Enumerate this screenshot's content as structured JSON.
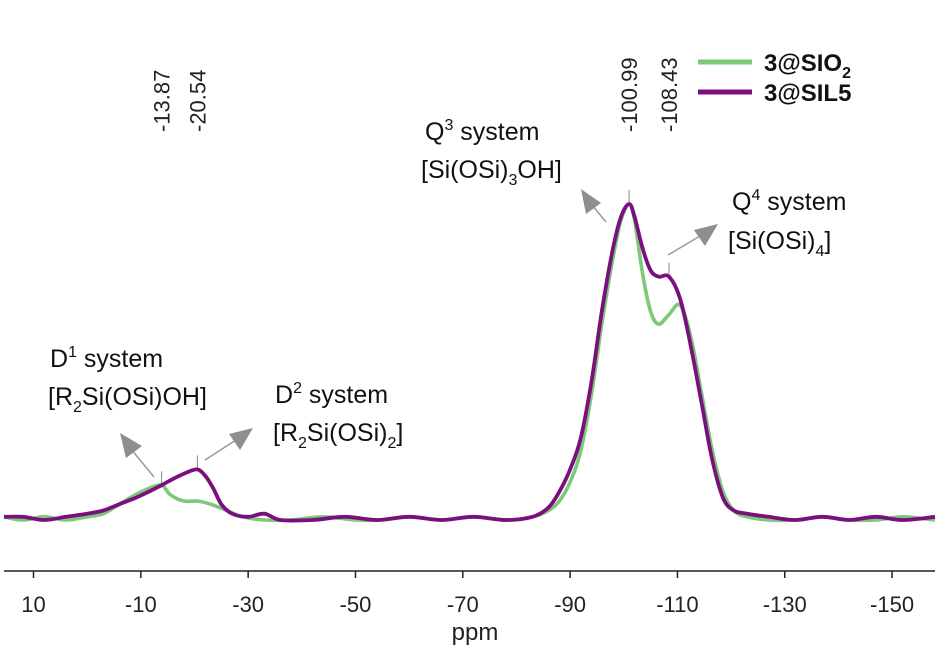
{
  "chart_data": {
    "type": "line",
    "xlabel": "ppm",
    "xlim": [
      15.5,
      -158
    ],
    "x_reversed": true,
    "xticks": [
      {
        "value": 10,
        "label": "10"
      },
      {
        "value": -10,
        "label": "-10"
      },
      {
        "value": -30,
        "label": "-30"
      },
      {
        "value": -50,
        "label": "-50"
      },
      {
        "value": -70,
        "label": "-70"
      },
      {
        "value": -90,
        "label": "-90"
      },
      {
        "value": -110,
        "label": "-110"
      },
      {
        "value": -130,
        "label": "-130"
      },
      {
        "value": -150,
        "label": "-150"
      }
    ],
    "ylim": [
      -0.03,
      1.08
    ],
    "yticks_shown": false,
    "grid": false,
    "legend_position": "top-right",
    "series": [
      {
        "name": "3@SIO2",
        "name_main": "3@SIO",
        "name_sub": "2",
        "color": "#7ec87a",
        "points": [
          [
            15.5,
            0.01
          ],
          [
            12,
            0.0
          ],
          [
            8,
            0.01
          ],
          [
            4,
            0.0
          ],
          [
            0,
            0.01
          ],
          [
            -3,
            0.02
          ],
          [
            -6,
            0.05
          ],
          [
            -9,
            0.08
          ],
          [
            -11.5,
            0.1
          ],
          [
            -13.87,
            0.11
          ],
          [
            -15.5,
            0.08
          ],
          [
            -18,
            0.06
          ],
          [
            -20.54,
            0.06
          ],
          [
            -23,
            0.05
          ],
          [
            -26,
            0.03
          ],
          [
            -29,
            0.01
          ],
          [
            -33,
            0.0
          ],
          [
            -38,
            0.0
          ],
          [
            -44,
            0.01
          ],
          [
            -50,
            0.0
          ],
          [
            -55,
            0.0
          ],
          [
            -60,
            0.01
          ],
          [
            -66,
            0.0
          ],
          [
            -72,
            0.01
          ],
          [
            -78,
            0.0
          ],
          [
            -83,
            0.01
          ],
          [
            -86,
            0.03
          ],
          [
            -88,
            0.06
          ],
          [
            -90,
            0.12
          ],
          [
            -92,
            0.22
          ],
          [
            -94,
            0.4
          ],
          [
            -96,
            0.63
          ],
          [
            -98,
            0.83
          ],
          [
            -99.5,
            0.95
          ],
          [
            -100.99,
            1.0
          ],
          [
            -102,
            0.95
          ],
          [
            -103.5,
            0.78
          ],
          [
            -105,
            0.66
          ],
          [
            -106.5,
            0.62
          ],
          [
            -108.43,
            0.65
          ],
          [
            -110.5,
            0.68
          ],
          [
            -112.5,
            0.58
          ],
          [
            -114.5,
            0.4
          ],
          [
            -116.5,
            0.22
          ],
          [
            -118.5,
            0.09
          ],
          [
            -120.5,
            0.03
          ],
          [
            -123,
            0.01
          ],
          [
            -127,
            0.0
          ],
          [
            -132,
            0.0
          ],
          [
            -137,
            0.01
          ],
          [
            -142,
            0.0
          ],
          [
            -147,
            0.0
          ],
          [
            -152,
            0.01
          ],
          [
            -158,
            0.0
          ]
        ]
      },
      {
        "name": "3@SIL5",
        "name_main": "3@SIL5",
        "name_sub": "",
        "color": "#7a0f7e",
        "points": [
          [
            15.5,
            0.01
          ],
          [
            12,
            0.01
          ],
          [
            8,
            0.0
          ],
          [
            4,
            0.01
          ],
          [
            0,
            0.02
          ],
          [
            -3,
            0.03
          ],
          [
            -6,
            0.05
          ],
          [
            -9,
            0.07
          ],
          [
            -11.5,
            0.09
          ],
          [
            -13.87,
            0.11
          ],
          [
            -16,
            0.13
          ],
          [
            -18.5,
            0.15
          ],
          [
            -20.54,
            0.16
          ],
          [
            -22,
            0.14
          ],
          [
            -23.5,
            0.1
          ],
          [
            -25,
            0.05
          ],
          [
            -27,
            0.02
          ],
          [
            -30,
            0.01
          ],
          [
            -33,
            0.02
          ],
          [
            -36,
            0.0
          ],
          [
            -42,
            0.0
          ],
          [
            -48,
            0.01
          ],
          [
            -54,
            0.0
          ],
          [
            -60,
            0.01
          ],
          [
            -66,
            0.0
          ],
          [
            -72,
            0.01
          ],
          [
            -78,
            0.0
          ],
          [
            -83,
            0.01
          ],
          [
            -86,
            0.04
          ],
          [
            -88,
            0.09
          ],
          [
            -90,
            0.16
          ],
          [
            -92,
            0.26
          ],
          [
            -94,
            0.44
          ],
          [
            -96,
            0.67
          ],
          [
            -98,
            0.86
          ],
          [
            -99.5,
            0.96
          ],
          [
            -100.99,
            1.0
          ],
          [
            -102,
            0.96
          ],
          [
            -103.5,
            0.86
          ],
          [
            -105,
            0.79
          ],
          [
            -106.5,
            0.77
          ],
          [
            -108.43,
            0.77
          ],
          [
            -110.5,
            0.7
          ],
          [
            -112.5,
            0.55
          ],
          [
            -114.5,
            0.37
          ],
          [
            -116.5,
            0.19
          ],
          [
            -118.5,
            0.07
          ],
          [
            -120.5,
            0.03
          ],
          [
            -123,
            0.02
          ],
          [
            -127,
            0.01
          ],
          [
            -132,
            0.0
          ],
          [
            -137,
            0.01
          ],
          [
            -142,
            0.0
          ],
          [
            -147,
            0.01
          ],
          [
            -152,
            0.0
          ],
          [
            -158,
            0.01
          ]
        ]
      }
    ],
    "peak_labels": [
      {
        "x": -13.87,
        "label": "-13.87"
      },
      {
        "x": -20.54,
        "label": "-20.54"
      },
      {
        "x": -100.99,
        "label": "-100.99"
      },
      {
        "x": -108.43,
        "label": "-108.43"
      }
    ],
    "annotations": [
      {
        "key": "D1",
        "line1_main": "D",
        "line1_sup": "1",
        "line1_rest": " system",
        "line2_parts": [
          "[R",
          "2",
          "Si(OSi)OH]"
        ]
      },
      {
        "key": "D2",
        "line1_main": "D",
        "line1_sup": "2",
        "line1_rest": " system",
        "line2_parts": [
          "[R",
          "2",
          "Si(OSi)",
          "2",
          "]"
        ]
      },
      {
        "key": "Q3",
        "line1_main": "Q",
        "line1_sup": "3",
        "line1_rest": " system",
        "line2_parts": [
          "[Si(OSi)",
          "3",
          "OH]"
        ]
      },
      {
        "key": "Q4",
        "line1_main": "Q",
        "line1_sup": "4",
        "line1_rest": " system",
        "line2_parts": [
          "[Si(OSi)",
          "4",
          "]"
        ]
      }
    ]
  }
}
